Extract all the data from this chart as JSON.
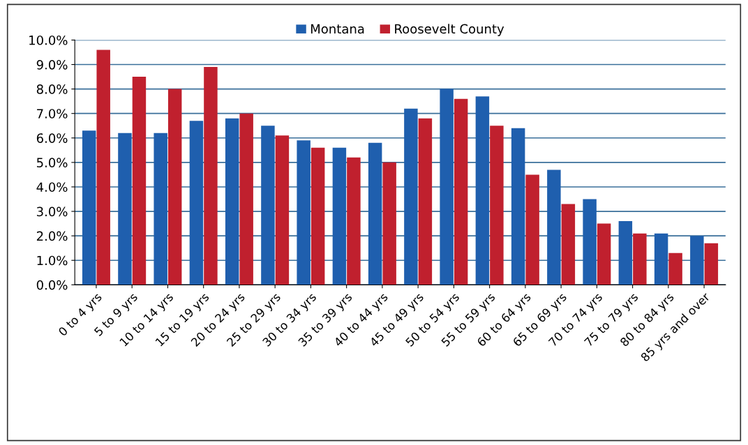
{
  "chart_data": {
    "type": "bar",
    "categories": [
      "0 to 4 yrs",
      "5 to 9 yrs",
      "10 to 14 yrs",
      "15 to 19 yrs",
      "20 to 24 yrs",
      "25 to 29 yrs",
      "30 to 34 yrs",
      "35 to 39 yrs",
      "40 to 44 yrs",
      "45 to 49 yrs",
      "50 to 54 yrs",
      "55 to 59 yrs",
      "60 to 64 yrs",
      "65 to 69 yrs",
      "70 to 74 yrs",
      "75 to 79 yrs",
      "80 to 84 yrs",
      "85 yrs and over"
    ],
    "series": [
      {
        "name": "Montana",
        "color": "#1f5fae",
        "values": [
          6.3,
          6.2,
          6.2,
          6.7,
          6.8,
          6.5,
          5.9,
          5.6,
          5.8,
          7.2,
          8.0,
          7.7,
          6.4,
          4.7,
          3.5,
          2.6,
          2.1,
          2.0
        ]
      },
      {
        "name": "Roosevelt County",
        "color": "#c0202e",
        "values": [
          9.6,
          8.5,
          8.0,
          8.9,
          7.0,
          6.1,
          5.6,
          5.2,
          5.0,
          6.8,
          7.6,
          6.5,
          4.5,
          3.3,
          2.5,
          2.1,
          1.3,
          1.7
        ]
      }
    ],
    "ylim": [
      0,
      10
    ],
    "yticks": [
      {
        "value": 0,
        "label": "0.0%"
      },
      {
        "value": 1,
        "label": "1.0%"
      },
      {
        "value": 2,
        "label": "2.0%"
      },
      {
        "value": 3,
        "label": "3.0%"
      },
      {
        "value": 4,
        "label": "4.0%"
      },
      {
        "value": 5,
        "label": "5.0%"
      },
      {
        "value": 6,
        "label": "6.0%"
      },
      {
        "value": 7,
        "label": "7.0%"
      },
      {
        "value": 8,
        "label": "8.0%"
      },
      {
        "value": 9,
        "label": "9.0%"
      },
      {
        "value": 10,
        "label": "10.0%"
      }
    ],
    "grid": "y",
    "legend": "top"
  }
}
